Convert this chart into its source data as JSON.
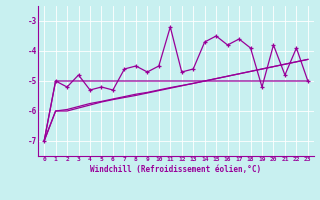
{
  "xlabel": "Windchill (Refroidissement éolien,°C)",
  "bg_color": "#c8f0f0",
  "line_color": "#990099",
  "x_values": [
    0,
    1,
    2,
    3,
    4,
    5,
    6,
    7,
    8,
    9,
    10,
    11,
    12,
    13,
    14,
    15,
    16,
    17,
    18,
    19,
    20,
    21,
    22,
    23
  ],
  "series1": [
    -7.0,
    -5.0,
    -5.2,
    -4.8,
    -5.3,
    -5.2,
    -5.3,
    -4.6,
    -4.5,
    -4.7,
    -4.5,
    -3.2,
    -4.7,
    -4.6,
    -3.7,
    -3.5,
    -3.8,
    -3.6,
    -3.9,
    -5.2,
    -3.8,
    -4.8,
    -3.9,
    -5.0
  ],
  "series2": [
    -7.0,
    -5.0,
    -5.0,
    -5.0,
    -5.0,
    -5.0,
    -5.0,
    -5.0,
    -5.0,
    -5.0,
    -5.0,
    -5.0,
    -5.0,
    -5.0,
    -5.0,
    -5.0,
    -5.0,
    -5.0,
    -5.0,
    -5.0,
    -5.0,
    -5.0,
    -5.0,
    -5.0
  ],
  "series3": [
    -7.0,
    -6.0,
    -5.95,
    -5.85,
    -5.75,
    -5.68,
    -5.6,
    -5.52,
    -5.44,
    -5.38,
    -5.3,
    -5.22,
    -5.15,
    -5.08,
    -5.0,
    -4.92,
    -4.84,
    -4.76,
    -4.68,
    -4.6,
    -4.52,
    -4.44,
    -4.36,
    -4.28
  ],
  "series4": [
    -7.0,
    -6.0,
    -6.0,
    -5.9,
    -5.8,
    -5.7,
    -5.62,
    -5.55,
    -5.48,
    -5.4,
    -5.32,
    -5.24,
    -5.16,
    -5.08,
    -5.0,
    -4.92,
    -4.84,
    -4.76,
    -4.68,
    -4.6,
    -4.52,
    -4.44,
    -4.36,
    -4.28
  ],
  "ylim": [
    -7.5,
    -2.5
  ],
  "yticks": [
    -7,
    -6,
    -5,
    -4,
    -3
  ],
  "xticks": [
    0,
    1,
    2,
    3,
    4,
    5,
    6,
    7,
    8,
    9,
    10,
    11,
    12,
    13,
    14,
    15,
    16,
    17,
    18,
    19,
    20,
    21,
    22,
    23
  ]
}
